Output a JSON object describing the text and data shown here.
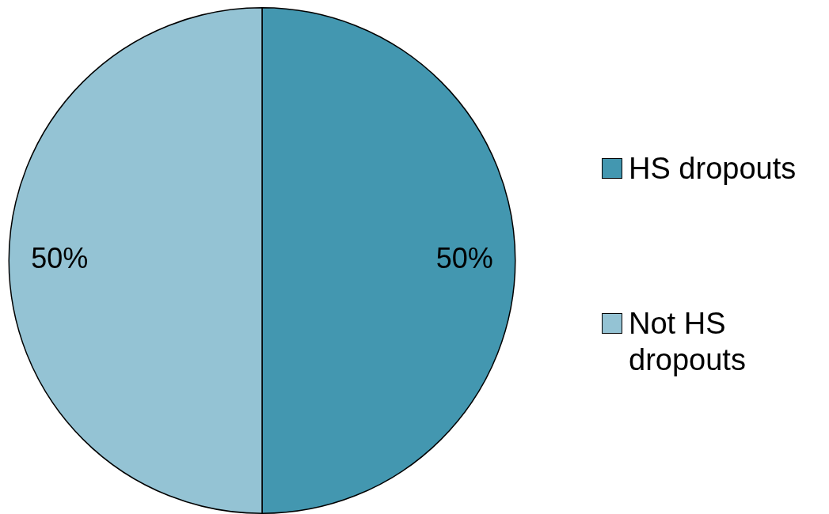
{
  "chart_data": {
    "type": "pie",
    "categories": [
      "HS dropouts",
      "Not HS dropouts"
    ],
    "values": [
      50,
      50
    ],
    "colors": [
      "#4397b0",
      "#94c3d4"
    ],
    "value_labels": [
      "50%",
      "50%"
    ],
    "legend": "right"
  }
}
